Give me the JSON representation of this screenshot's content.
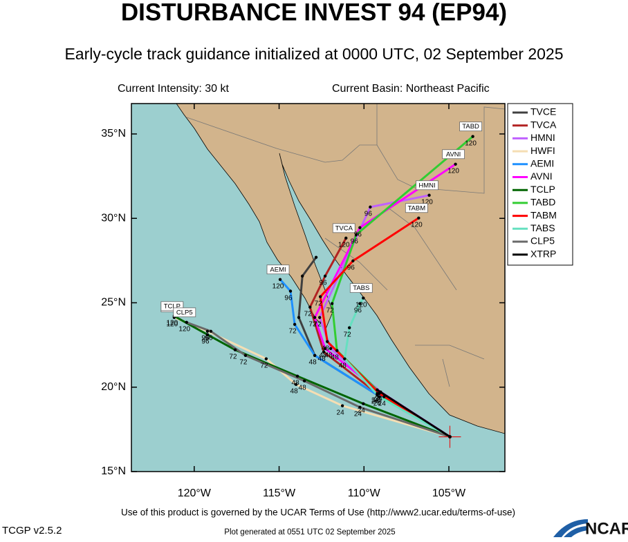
{
  "header": {
    "title": "DISTURBANCE INVEST 94 (EP94)",
    "subtitle": "Early-cycle track guidance initialized at 0000 UTC, 02 September 2025",
    "intensity": "Current Intensity: 30 kt",
    "basin": "Current Basin: Northeast Pacific"
  },
  "chart_data": {
    "type": "line",
    "xlim": [
      -123.7,
      -101.7
    ],
    "ylim": [
      15,
      36.8
    ],
    "xticks": [
      {
        "value": -120,
        "label": "120°W"
      },
      {
        "value": -115,
        "label": "115°W"
      },
      {
        "value": -110,
        "label": "110°W"
      },
      {
        "value": -105,
        "label": "105°W"
      }
    ],
    "yticks": [
      {
        "value": 15,
        "label": "15°N"
      },
      {
        "value": 20,
        "label": "20°N"
      },
      {
        "value": 25,
        "label": "25°N"
      },
      {
        "value": 30,
        "label": "30°N"
      },
      {
        "value": 35,
        "label": "35°N"
      }
    ],
    "legend": "top-right",
    "series": [
      {
        "name": "TVCE",
        "color": "#404040",
        "x": [
          -104.94,
          -109.22,
          -112.9,
          -113.84,
          -113.63,
          -112.82
        ],
        "values": [
          17.06,
          19.55,
          21.88,
          24.13,
          26.58,
          27.69
        ],
        "point_labels": [
          null,
          null,
          null,
          null,
          null,
          null
        ]
      },
      {
        "name": "TVCA",
        "color": "#b22222",
        "x": [
          -104.94,
          -109.22,
          -112.37,
          -113.18,
          -112.29,
          -111.06
        ],
        "values": [
          17.06,
          19.63,
          22.09,
          24.74,
          26.58,
          28.83
        ],
        "point_labels": [
          null,
          24,
          48,
          72,
          96,
          120
        ]
      },
      {
        "name": "HMNI",
        "color": "#c060ff",
        "x": [
          -104.94,
          -109.02,
          -111.96,
          -112.61,
          -109.63,
          -106.16
        ],
        "values": [
          17.06,
          19.71,
          22.29,
          24.13,
          30.67,
          31.37
        ],
        "point_labels": [
          null,
          24,
          48,
          72,
          96,
          120
        ]
      },
      {
        "name": "HWFI",
        "color": "#f5deb3",
        "x": [
          -104.94,
          -111.27,
          -114.0,
          -115.76,
          -119.22,
          -121.18
        ],
        "values": [
          17.06,
          18.9,
          20.16,
          21.68,
          23.31,
          24.13
        ],
        "point_labels": [
          null,
          24,
          48,
          72,
          96,
          120
        ]
      },
      {
        "name": "AEMI",
        "color": "#1e90ff",
        "x": [
          -104.94,
          -109.22,
          -112.9,
          -114.08,
          -114.33,
          -114.94
        ],
        "values": [
          17.06,
          19.55,
          21.88,
          23.72,
          25.69,
          26.38
        ],
        "point_labels": [
          null,
          24,
          48,
          72,
          96,
          120
        ]
      },
      {
        "name": "AVNI",
        "color": "#ff00ff",
        "x": [
          -104.94,
          -109.02,
          -112.29,
          -112.9,
          -110.24,
          -104.61
        ],
        "values": [
          17.06,
          19.71,
          22.29,
          24.13,
          29.45,
          33.21
        ],
        "point_labels": [
          null,
          24,
          48,
          72,
          96,
          120
        ]
      },
      {
        "name": "TCLP",
        "color": "#006400",
        "x": [
          -104.94,
          -110.04,
          -113.92,
          -117.59,
          -119.22,
          -121.18
        ],
        "values": [
          17.06,
          19.02,
          20.65,
          22.21,
          23.11,
          24.21
        ],
        "point_labels": [
          null,
          24,
          48,
          72,
          96,
          120
        ]
      },
      {
        "name": "TABD",
        "color": "#32cd32",
        "x": [
          -104.94,
          -108.82,
          -111.59,
          -111.88,
          -110.45,
          -103.59
        ],
        "values": [
          17.06,
          19.43,
          22.17,
          24.95,
          29.04,
          34.85
        ],
        "point_labels": [
          null,
          24,
          48,
          72,
          96,
          120
        ]
      },
      {
        "name": "TABM",
        "color": "#ff0000",
        "x": [
          -104.94,
          -109.1,
          -112.16,
          -112.57,
          -110.65,
          -106.78
        ],
        "values": [
          17.06,
          19.63,
          22.7,
          25.36,
          27.48,
          30.02
        ],
        "point_labels": [
          null,
          24,
          48,
          72,
          96,
          120
        ]
      },
      {
        "name": "TABS",
        "color": "#66e0c0",
        "x": [
          -104.94,
          -109.1,
          -111.14,
          -110.86,
          -110.24,
          -110.04
        ],
        "values": [
          17.06,
          19.43,
          21.68,
          23.52,
          24.95,
          25.28
        ],
        "point_labels": [
          null,
          24,
          48,
          72,
          96,
          120
        ]
      },
      {
        "name": "CLP5",
        "color": "#696969",
        "x": [
          -104.94,
          -110.24,
          -113.51,
          -116.98,
          -119.02,
          -120.45
        ],
        "values": [
          17.06,
          18.81,
          20.37,
          21.88,
          23.31,
          23.84
        ],
        "point_labels": [
          null,
          24,
          48,
          72,
          96,
          120
        ]
      },
      {
        "name": "XTRP",
        "color": "#000000",
        "x": [
          -104.94,
          -109.22
        ],
        "values": [
          17.06,
          19.84
        ],
        "point_labels": [
          null,
          null
        ]
      }
    ]
  },
  "footer": {
    "terms": "Use of this product is governed by the UCAR Terms of Use (http://www2.ucar.edu/terms-of-use)",
    "version": "TCGP v2.5.2",
    "generated": "Plot generated at 0551 UTC   02 September 2025",
    "logo": "NCAR"
  }
}
